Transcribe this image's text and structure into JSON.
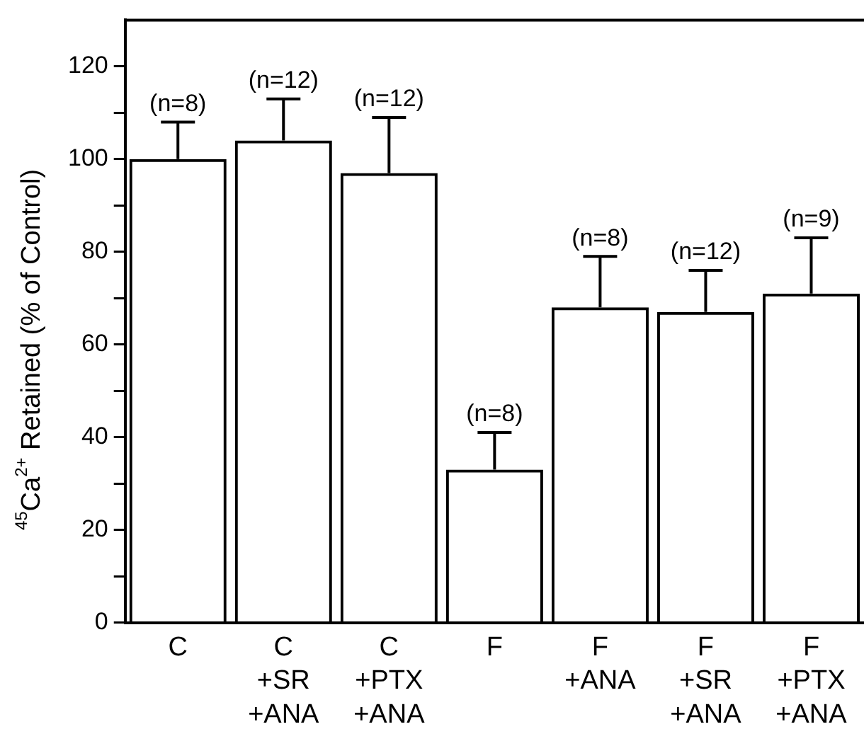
{
  "chart_data": {
    "type": "bar",
    "categories": [
      "C",
      "C\n+SR\n+ANA",
      "C\n+PTX\n+ANA",
      "F",
      "F\n+ANA",
      "F\n+SR\n+ANA",
      "F\n+PTX\n+ANA"
    ],
    "values": [
      100,
      104,
      97,
      33,
      68,
      67,
      71
    ],
    "errors": [
      [
        100,
        108
      ],
      [
        104,
        113
      ],
      [
        97,
        109
      ],
      [
        33,
        41
      ],
      [
        68,
        79
      ],
      [
        67,
        76
      ],
      [
        71,
        83
      ]
    ],
    "colors": [
      "#000000",
      "#000000",
      "#000000",
      "#000000",
      "#000000",
      "#000000",
      "#000000"
    ],
    "ylabel": "$^{45}$Ca$^{2+}$ Retained (% of Control)",
    "ylim": [
      0,
      130
    ],
    "yticks": [
      0,
      {
        "value": 10,
        "label": null
      },
      20,
      {
        "value": 30,
        "label": null
      },
      40,
      {
        "value": 50,
        "label": null
      },
      60,
      {
        "value": 70,
        "label": null
      },
      80,
      {
        "value": 90,
        "label": null
      },
      100,
      {
        "value": 110,
        "label": null
      },
      120
    ],
    "annotations": [
      {
        "text": "(n=8)",
        "x": "C",
        "y": 108
      },
      {
        "text": "(n=12)",
        "x": "C\n+SR\n+ANA",
        "y": 113
      },
      {
        "text": "(n=12)",
        "x": "C\n+PTX\n+ANA",
        "y": 109
      },
      {
        "text": "(n=8)",
        "x": "F",
        "y": 41
      },
      {
        "text": "(n=8)",
        "x": "F\n+ANA",
        "y": 79
      },
      {
        "text": "(n=12)",
        "x": "F\n+SR\n+ANA",
        "y": 76
      },
      {
        "text": "(n=9)",
        "x": "F\n+PTX\n+ANA",
        "y": 83
      }
    ],
    "grid": false,
    "legend": false
  }
}
